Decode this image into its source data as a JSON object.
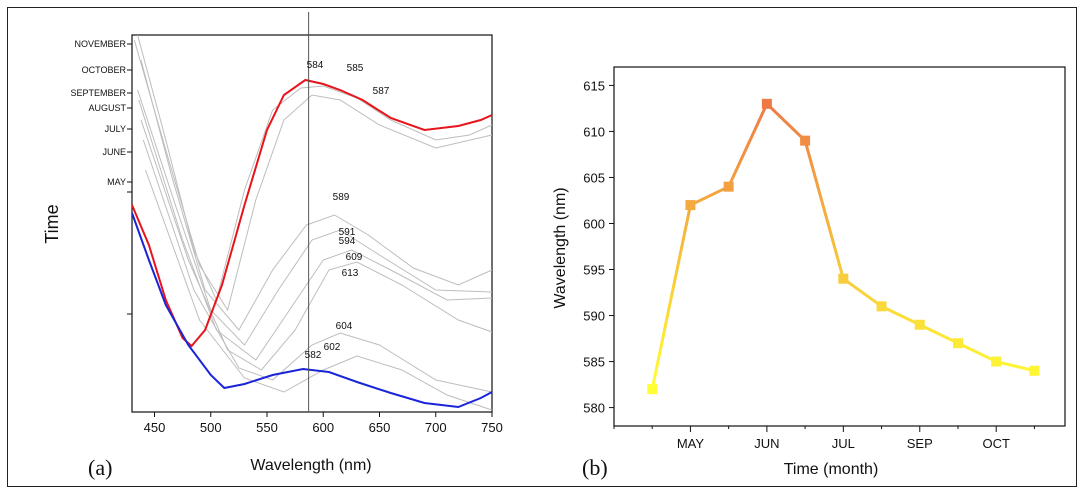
{
  "chart_data": [
    {
      "type": "line",
      "panel_label": "(a)",
      "xlabel": "Wavelength (nm)",
      "ylabel": "Time",
      "xlim": [
        430,
        750
      ],
      "xticks": [
        450,
        500,
        550,
        600,
        650,
        700,
        750
      ],
      "reference_line_x": 587,
      "month_ticks": [
        "NOVEMBER",
        "OCTOBER",
        "SEPTEMBER",
        "AUGUST",
        "JULY",
        "JUNE",
        "MAY"
      ],
      "peak_labels": [
        "584",
        "585",
        "587",
        "589",
        "591",
        "594",
        "609",
        "613",
        "604",
        "602",
        "582"
      ],
      "highlight_colors": {
        "latest": "#e8141b",
        "earliest": "#1a24d8",
        "others": "#bdbdbd"
      },
      "grid": false
    },
    {
      "type": "line",
      "panel_label": "(b)",
      "xlabel": "Time (month)",
      "ylabel": "Wavelength (nm)",
      "ylim": [
        578,
        617
      ],
      "yticks": [
        580,
        585,
        590,
        595,
        600,
        605,
        610,
        615
      ],
      "xtick_labels": [
        "MAY",
        "JUN",
        "JUL",
        "SEP",
        "OCT"
      ],
      "x": [
        0.5,
        1,
        1.5,
        2,
        2.5,
        3,
        3.5,
        4,
        4.5,
        5,
        5.5
      ],
      "values": [
        582,
        602,
        604,
        613,
        609,
        594,
        591,
        589,
        587,
        585,
        584
      ],
      "xlim": [
        0,
        5.9
      ],
      "grid": false,
      "colors": {
        "low": "#ffff33",
        "high": "#ee7b46"
      }
    }
  ]
}
